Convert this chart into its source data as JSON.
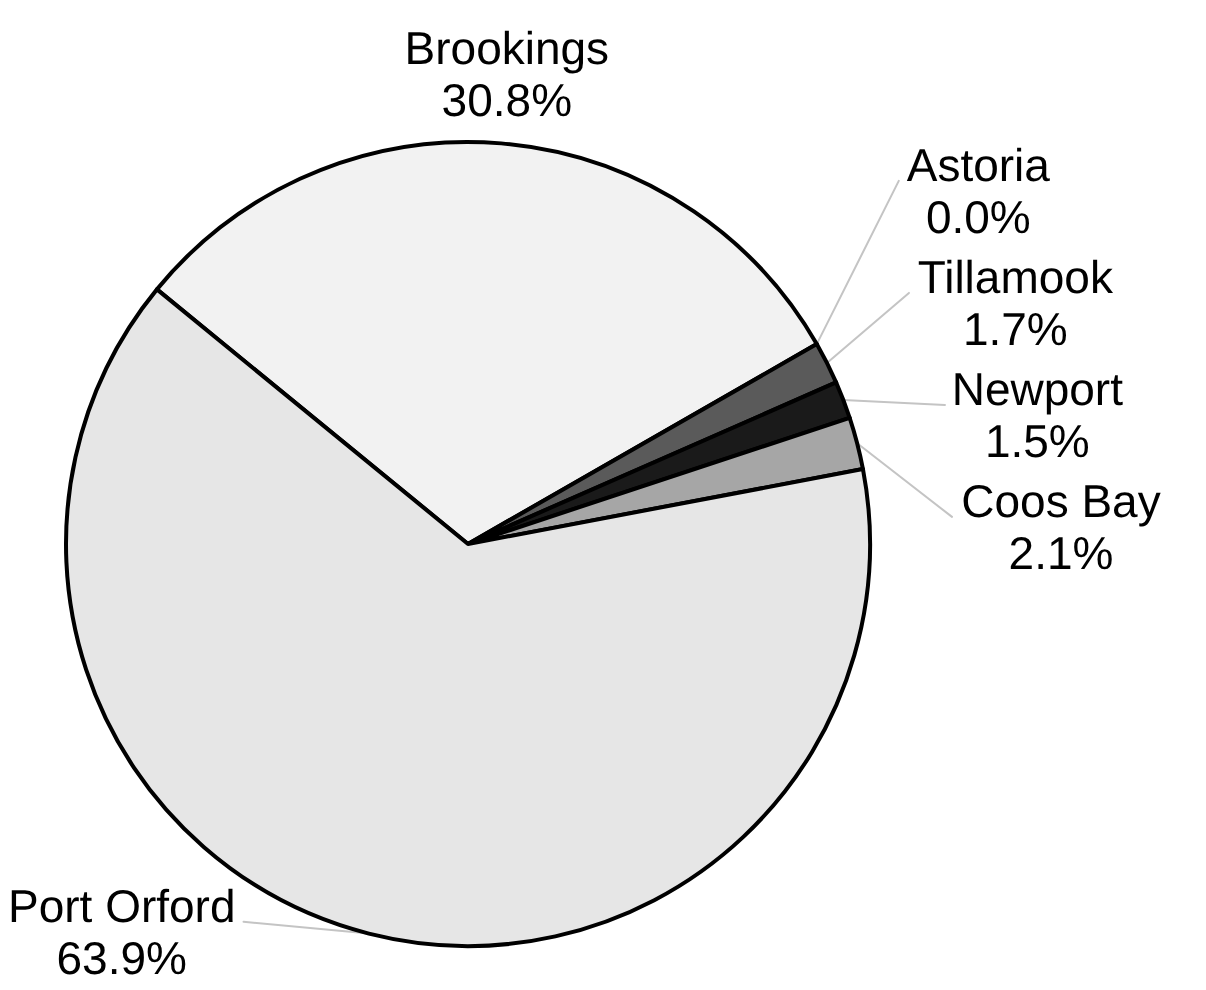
{
  "chart_data": {
    "type": "pie",
    "categories": [
      "Brookings",
      "Astoria",
      "Tillamook",
      "Newport",
      "Coos Bay",
      "Port Orford"
    ],
    "values": [
      30.8,
      0.0,
      1.7,
      1.5,
      2.1,
      63.9
    ],
    "colors": [
      "#f2f2f2",
      "#808080",
      "#5a5a5a",
      "#1a1a1a",
      "#a6a6a6",
      "#e6e6e6"
    ],
    "value_labels": [
      "30.8%",
      "0.0%",
      "1.7%",
      "1.5%",
      "2.1%",
      "63.9%"
    ]
  }
}
